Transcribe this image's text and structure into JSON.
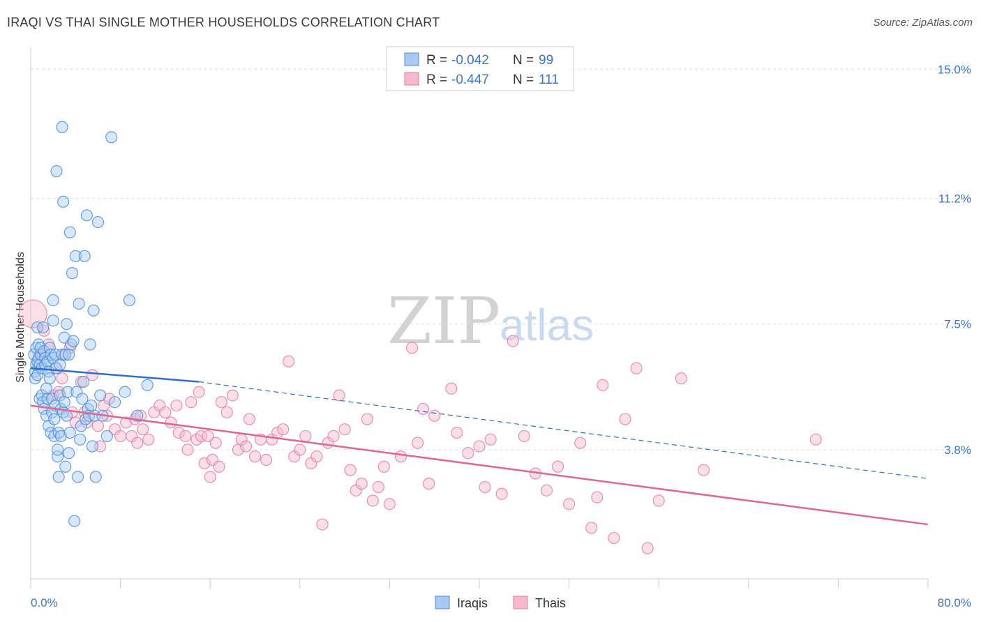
{
  "header": {
    "title": "IRAQI VS THAI SINGLE MOTHER HOUSEHOLDS CORRELATION CHART",
    "source": "Source: ZipAtlas.com"
  },
  "watermark": {
    "zip": "ZIP",
    "atlas": "atlas"
  },
  "legend": {
    "iraqis": {
      "r_label": "R =",
      "r_value": "-0.042",
      "n_label": "N =",
      "n_value": "99"
    },
    "thais": {
      "r_label": "R =",
      "r_value": "-0.447",
      "n_label": "N =",
      "n_value": "111"
    }
  },
  "bottom_legend": {
    "iraqis": "Iraqis",
    "thais": "Thais"
  },
  "colors": {
    "iraqis_fill": "#a9c9f2",
    "iraqis_stroke": "#4d8fdc",
    "iraqis_line": "#2c6fd1",
    "thais_fill": "#f6b8cc",
    "thais_stroke": "#e57ea0",
    "thais_line": "#e0678f",
    "grid": "#dddddd",
    "axis_text": "#3b76c9"
  },
  "chart_data": {
    "type": "scatter",
    "title": "IRAQI VS THAI SINGLE MOTHER HOUSEHOLDS CORRELATION CHART",
    "xlabel": "",
    "ylabel": "Single Mother Households",
    "xlim": [
      0,
      80
    ],
    "ylim": [
      0,
      15.5
    ],
    "x_tick_labels": [
      "0.0%",
      "80.0%"
    ],
    "y_ticks": [
      3.8,
      7.5,
      11.2,
      15.0
    ],
    "y_tick_labels": [
      "3.8%",
      "7.5%",
      "11.2%",
      "15.0%"
    ],
    "grid": true,
    "legend_position": "top-center",
    "series": [
      {
        "name": "Iraqis",
        "R": -0.042,
        "N": 99,
        "trend": {
          "x0": 0,
          "y0": 6.2,
          "x1": 15,
          "y1": 5.8,
          "dash_x1": 80,
          "dash_y1": 2.95
        },
        "points": [
          [
            0.3,
            6.6
          ],
          [
            0.4,
            6.1
          ],
          [
            0.4,
            5.9
          ],
          [
            0.5,
            6.8
          ],
          [
            0.5,
            6.3
          ],
          [
            0.6,
            7.4
          ],
          [
            0.6,
            6.4
          ],
          [
            0.6,
            6.0
          ],
          [
            0.7,
            6.9
          ],
          [
            0.7,
            6.5
          ],
          [
            0.8,
            6.3
          ],
          [
            0.8,
            5.3
          ],
          [
            0.9,
            6.6
          ],
          [
            0.9,
            6.8
          ],
          [
            1.0,
            5.4
          ],
          [
            1.0,
            6.2
          ],
          [
            1.1,
            7.4
          ],
          [
            1.1,
            5.2
          ],
          [
            1.2,
            6.7
          ],
          [
            1.2,
            5.0
          ],
          [
            1.3,
            6.5
          ],
          [
            1.3,
            6.3
          ],
          [
            1.4,
            5.6
          ],
          [
            1.4,
            4.8
          ],
          [
            1.5,
            6.4
          ],
          [
            1.5,
            5.3
          ],
          [
            1.6,
            6.1
          ],
          [
            1.6,
            4.5
          ],
          [
            1.7,
            6.8
          ],
          [
            1.7,
            5.9
          ],
          [
            1.8,
            6.6
          ],
          [
            1.8,
            4.3
          ],
          [
            1.9,
            5.3
          ],
          [
            1.9,
            4.9
          ],
          [
            2.0,
            7.6
          ],
          [
            2.0,
            8.2
          ],
          [
            2.0,
            6.5
          ],
          [
            2.1,
            4.7
          ],
          [
            2.1,
            4.2
          ],
          [
            2.2,
            5.1
          ],
          [
            2.2,
            6.6
          ],
          [
            2.3,
            12.0
          ],
          [
            2.3,
            6.2
          ],
          [
            2.4,
            3.6
          ],
          [
            2.4,
            3.8
          ],
          [
            2.5,
            3.0
          ],
          [
            2.5,
            4.3
          ],
          [
            2.6,
            6.3
          ],
          [
            2.6,
            5.4
          ],
          [
            2.7,
            4.2
          ],
          [
            2.7,
            5.0
          ],
          [
            2.8,
            6.6
          ],
          [
            2.8,
            13.3
          ],
          [
            2.9,
            11.1
          ],
          [
            2.9,
            4.9
          ],
          [
            3.0,
            7.1
          ],
          [
            3.0,
            5.2
          ],
          [
            3.1,
            3.3
          ],
          [
            3.1,
            6.6
          ],
          [
            3.2,
            7.5
          ],
          [
            3.2,
            4.8
          ],
          [
            3.3,
            5.5
          ],
          [
            3.4,
            3.7
          ],
          [
            3.4,
            6.6
          ],
          [
            3.5,
            10.2
          ],
          [
            3.5,
            4.3
          ],
          [
            3.6,
            6.9
          ],
          [
            3.7,
            9.0
          ],
          [
            3.8,
            7.0
          ],
          [
            3.9,
            1.7
          ],
          [
            4.0,
            9.5
          ],
          [
            4.1,
            5.5
          ],
          [
            4.2,
            3.0
          ],
          [
            4.3,
            8.1
          ],
          [
            4.4,
            4.1
          ],
          [
            4.5,
            4.5
          ],
          [
            4.6,
            5.3
          ],
          [
            4.7,
            5.8
          ],
          [
            4.8,
            9.5
          ],
          [
            4.9,
            4.7
          ],
          [
            5.0,
            10.7
          ],
          [
            5.1,
            5.0
          ],
          [
            5.2,
            4.8
          ],
          [
            5.3,
            6.9
          ],
          [
            5.4,
            5.1
          ],
          [
            5.5,
            3.9
          ],
          [
            5.6,
            7.9
          ],
          [
            5.7,
            4.8
          ],
          [
            5.8,
            3.0
          ],
          [
            6.0,
            10.5
          ],
          [
            6.2,
            5.4
          ],
          [
            6.4,
            4.8
          ],
          [
            6.8,
            4.2
          ],
          [
            7.2,
            13.0
          ],
          [
            7.5,
            5.2
          ],
          [
            8.4,
            5.5
          ],
          [
            8.8,
            8.2
          ],
          [
            9.5,
            4.8
          ],
          [
            10.4,
            5.7
          ]
        ]
      },
      {
        "name": "Thais",
        "R": -0.447,
        "N": 111,
        "trend": {
          "x0": 0,
          "y0": 5.1,
          "x1": 80,
          "y1": 1.6
        },
        "points": [
          [
            0.2,
            7.8
          ],
          [
            0.8,
            6.6
          ],
          [
            1.2,
            7.3
          ],
          [
            1.6,
            6.9
          ],
          [
            2.0,
            5.4
          ],
          [
            2.2,
            6.2
          ],
          [
            2.5,
            5.5
          ],
          [
            2.8,
            5.9
          ],
          [
            3.0,
            6.6
          ],
          [
            3.5,
            6.8
          ],
          [
            3.7,
            4.9
          ],
          [
            4.0,
            4.6
          ],
          [
            4.5,
            5.8
          ],
          [
            4.8,
            4.9
          ],
          [
            5.0,
            4.6
          ],
          [
            5.5,
            6.0
          ],
          [
            6.0,
            4.5
          ],
          [
            6.2,
            3.9
          ],
          [
            6.5,
            5.1
          ],
          [
            6.8,
            4.8
          ],
          [
            7.0,
            5.3
          ],
          [
            7.5,
            4.4
          ],
          [
            8.0,
            4.2
          ],
          [
            8.5,
            4.6
          ],
          [
            9.0,
            4.2
          ],
          [
            9.3,
            4.7
          ],
          [
            9.5,
            4.0
          ],
          [
            9.8,
            4.8
          ],
          [
            10.0,
            4.4
          ],
          [
            10.5,
            4.1
          ],
          [
            11.0,
            4.9
          ],
          [
            11.5,
            5.1
          ],
          [
            12.0,
            4.9
          ],
          [
            12.5,
            4.6
          ],
          [
            13.0,
            5.1
          ],
          [
            13.2,
            4.3
          ],
          [
            13.8,
            4.2
          ],
          [
            14.0,
            3.8
          ],
          [
            14.3,
            5.2
          ],
          [
            14.8,
            4.1
          ],
          [
            15.0,
            5.5
          ],
          [
            15.2,
            4.2
          ],
          [
            15.5,
            3.4
          ],
          [
            15.8,
            4.2
          ],
          [
            16.0,
            3.0
          ],
          [
            16.2,
            3.5
          ],
          [
            16.5,
            4.0
          ],
          [
            16.8,
            3.3
          ],
          [
            17.0,
            5.2
          ],
          [
            17.5,
            4.9
          ],
          [
            18.0,
            5.4
          ],
          [
            18.5,
            3.8
          ],
          [
            18.8,
            4.1
          ],
          [
            19.2,
            3.9
          ],
          [
            19.5,
            4.7
          ],
          [
            20.0,
            3.6
          ],
          [
            20.5,
            4.1
          ],
          [
            21.0,
            3.5
          ],
          [
            21.5,
            4.1
          ],
          [
            22.0,
            4.3
          ],
          [
            22.5,
            4.4
          ],
          [
            23.0,
            6.4
          ],
          [
            23.5,
            3.6
          ],
          [
            24.0,
            3.8
          ],
          [
            24.5,
            4.2
          ],
          [
            25.0,
            3.4
          ],
          [
            25.5,
            3.6
          ],
          [
            26.0,
            1.6
          ],
          [
            26.5,
            4.0
          ],
          [
            27.0,
            4.2
          ],
          [
            27.5,
            5.4
          ],
          [
            28.0,
            4.4
          ],
          [
            28.5,
            3.2
          ],
          [
            29.0,
            2.6
          ],
          [
            29.5,
            2.8
          ],
          [
            30.0,
            4.7
          ],
          [
            30.5,
            2.3
          ],
          [
            31.0,
            2.7
          ],
          [
            31.5,
            3.3
          ],
          [
            32.0,
            2.2
          ],
          [
            33.0,
            3.6
          ],
          [
            34.0,
            6.8
          ],
          [
            34.5,
            4.0
          ],
          [
            35.0,
            5.0
          ],
          [
            35.5,
            2.8
          ],
          [
            36.0,
            4.8
          ],
          [
            37.5,
            5.6
          ],
          [
            38.0,
            4.3
          ],
          [
            39.0,
            3.7
          ],
          [
            40.0,
            3.9
          ],
          [
            40.5,
            2.7
          ],
          [
            41.0,
            4.1
          ],
          [
            42.0,
            2.5
          ],
          [
            43.0,
            7.0
          ],
          [
            44.0,
            4.2
          ],
          [
            45.0,
            3.1
          ],
          [
            46.0,
            2.6
          ],
          [
            47.0,
            3.3
          ],
          [
            48.0,
            2.2
          ],
          [
            49.0,
            4.0
          ],
          [
            50.0,
            1.5
          ],
          [
            50.5,
            2.4
          ],
          [
            51.0,
            5.7
          ],
          [
            52.0,
            1.2
          ],
          [
            53.0,
            4.7
          ],
          [
            54.0,
            6.2
          ],
          [
            55.0,
            0.9
          ],
          [
            56.0,
            2.3
          ],
          [
            58.0,
            5.9
          ],
          [
            60.0,
            3.2
          ],
          [
            70.0,
            4.1
          ]
        ]
      }
    ]
  }
}
